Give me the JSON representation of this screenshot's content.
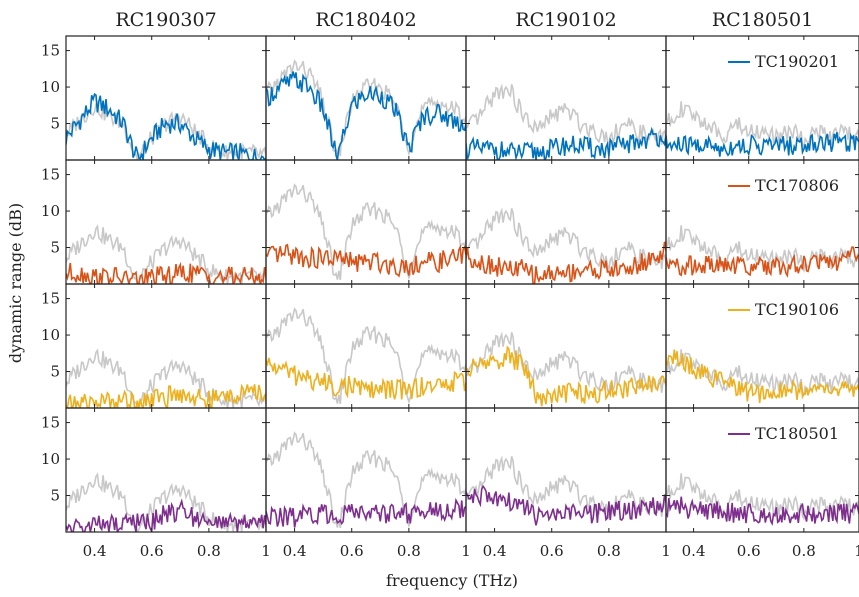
{
  "chart_data": {
    "type": "line",
    "layout": "4x4 small multiples",
    "column_titles": [
      "RC190307",
      "RC180402",
      "RC190102",
      "RC180501"
    ],
    "row_series": [
      {
        "name": "TC190201",
        "color": "#0072bd"
      },
      {
        "name": "TC170806",
        "color": "#d95319"
      },
      {
        "name": "TC190106",
        "color": "#edb120"
      },
      {
        "name": "TC180501",
        "color": "#7e2f8e"
      }
    ],
    "reference_color": "#c8c8c8",
    "xlabel": "frequency (THz)",
    "ylabel": "dynamic range (dB)",
    "xlim": [
      0.3,
      1.0
    ],
    "ylim": [
      0,
      17
    ],
    "x_ticks": [
      0.4,
      0.6,
      0.8,
      1
    ],
    "x_tick_labels": [
      "0.4",
      "0.6",
      "0.8",
      "1"
    ],
    "y_ticks": [
      5,
      10,
      15
    ],
    "y_tick_labels": [
      "5",
      "10",
      "15"
    ],
    "x": [
      0.3,
      0.35,
      0.4,
      0.45,
      0.5,
      0.55,
      0.6,
      0.65,
      0.7,
      0.75,
      0.8,
      0.85,
      0.9,
      0.95,
      1.0
    ],
    "reference_by_column": [
      [
        3.5,
        5.5,
        7.5,
        6,
        5,
        0,
        3,
        5,
        6,
        4,
        2,
        1,
        1,
        1,
        0.5
      ],
      [
        9,
        11,
        13,
        12,
        8,
        0,
        8,
        10,
        10,
        8,
        2,
        7,
        8,
        7,
        6
      ],
      [
        4,
        6,
        9,
        10,
        6,
        4,
        6,
        7,
        5,
        4,
        3,
        5,
        4,
        3,
        3
      ],
      [
        5,
        7,
        6,
        5,
        3,
        5,
        4,
        4,
        3,
        4,
        3,
        4,
        3,
        4,
        3
      ]
    ],
    "series_values": [
      [
        [
          3,
          5.5,
          8,
          7,
          5,
          0,
          3,
          5,
          5,
          3,
          1.5,
          1,
          1,
          0.5,
          0.3
        ],
        [
          8.5,
          10,
          11,
          10,
          7,
          0,
          7.5,
          9,
          9,
          7,
          1.5,
          6,
          6.5,
          5.5,
          5
        ],
        [
          1.5,
          1.5,
          1.5,
          1,
          1,
          1,
          1.5,
          2,
          2,
          1.5,
          1.5,
          2,
          2.5,
          3,
          3.5
        ],
        [
          2,
          2,
          2,
          2,
          1.5,
          2,
          2,
          2,
          2,
          2,
          2,
          2.5,
          2.5,
          2.5,
          2.5
        ]
      ],
      [
        [
          1.5,
          1.5,
          1,
          1,
          0.8,
          0.5,
          1,
          1,
          1.5,
          1.5,
          1,
          1,
          1,
          1,
          1
        ],
        [
          3.5,
          4,
          4,
          3.5,
          3.5,
          3.5,
          3,
          3,
          3,
          2.5,
          2.5,
          3,
          3,
          3.5,
          4
        ],
        [
          4,
          3,
          2.5,
          2,
          2,
          1,
          1.5,
          1.5,
          2,
          2,
          2,
          2,
          2.5,
          3.5,
          4.5
        ],
        [
          2.5,
          2.5,
          2.5,
          2.5,
          2.5,
          2.5,
          2.5,
          2.5,
          2.5,
          2.5,
          2.5,
          3,
          3,
          3.5,
          4
        ]
      ],
      [
        [
          0.5,
          0.5,
          0.8,
          1,
          1,
          1,
          1.2,
          1.5,
          2,
          1.5,
          1,
          1.5,
          2,
          2,
          2
        ],
        [
          6,
          5.5,
          4.5,
          4,
          3.5,
          3,
          3,
          2.5,
          2.5,
          2.5,
          2.5,
          3,
          3,
          3.5,
          3.5
        ],
        [
          5,
          6,
          6.5,
          7,
          6,
          1.5,
          1.5,
          2,
          2,
          2,
          2.5,
          2.5,
          3,
          3.5,
          3.5
        ],
        [
          7,
          6.5,
          5.5,
          4.5,
          3.5,
          3,
          2,
          2,
          2.5,
          2.5,
          2.5,
          2.5,
          2.5,
          2.5,
          2.5
        ]
      ],
      [
        [
          0.5,
          0.5,
          0.8,
          1,
          1,
          1.2,
          1.5,
          2.5,
          3,
          2,
          1.5,
          1,
          1,
          1,
          1
        ],
        [
          2,
          2,
          2,
          2.5,
          2.5,
          2.5,
          2.5,
          2.5,
          2.5,
          2.5,
          2.5,
          3,
          3,
          3,
          3.5
        ],
        [
          5,
          5,
          4.5,
          4,
          3.5,
          2,
          2,
          2.5,
          2.5,
          2.5,
          3,
          3,
          3,
          3.5,
          4
        ],
        [
          3.5,
          3.5,
          3,
          3,
          3,
          2.5,
          2.5,
          2.5,
          2.5,
          2.5,
          2.5,
          2.5,
          2.5,
          2.5,
          2.5
        ]
      ]
    ]
  }
}
